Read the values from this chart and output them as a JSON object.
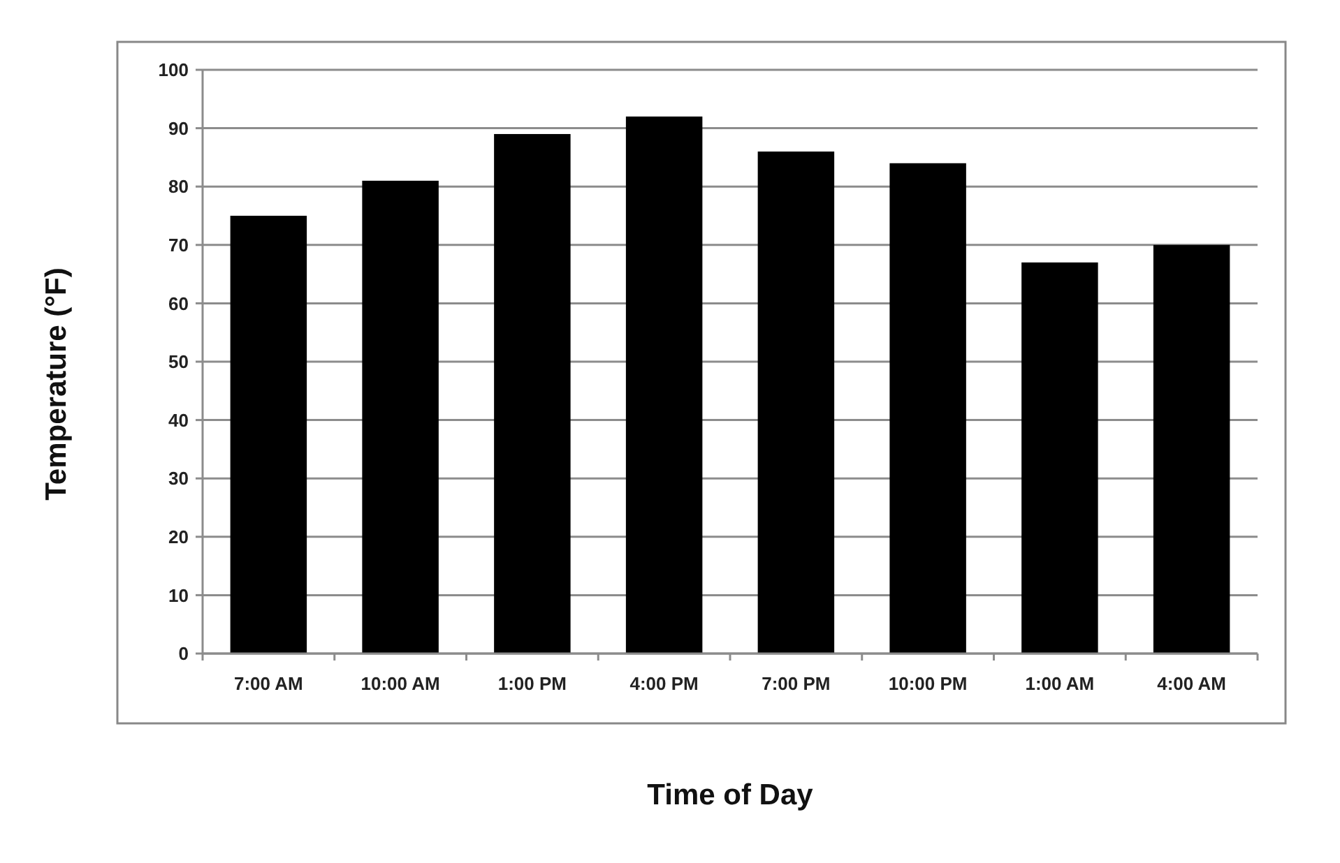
{
  "chart_data": {
    "type": "bar",
    "xlabel": "Time of Day",
    "ylabel": "Temperature (°F)",
    "categories": [
      "7:00 AM",
      "10:00 AM",
      "1:00 PM",
      "4:00 PM",
      "7:00 PM",
      "10:00 PM",
      "1:00 AM",
      "4:00 AM"
    ],
    "values": [
      75,
      81,
      89,
      92,
      86,
      84,
      67,
      70
    ],
    "color": "#000000",
    "ylim": [
      0,
      100
    ],
    "yticks": [
      0,
      10,
      20,
      30,
      40,
      50,
      60,
      70,
      80,
      90,
      100
    ],
    "grid": "y"
  }
}
